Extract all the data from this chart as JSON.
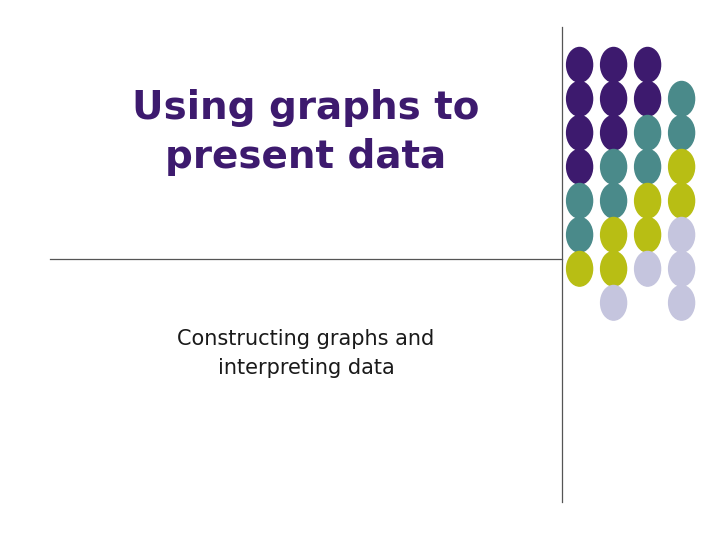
{
  "title_line1": "Using graphs to",
  "title_line2": "present data",
  "subtitle_line1": "Constructing graphs and",
  "subtitle_line2": "interpreting data",
  "title_color": "#3d1a6e",
  "subtitle_color": "#1a1a1a",
  "background_color": "#ffffff",
  "line_color": "#555555",
  "dot_colors": {
    "purple": "#3d1a6e",
    "teal": "#4a8a8a",
    "yellow": "#b8be14",
    "lavender": "#c5c5de"
  },
  "dot_grid": [
    [
      "purple",
      "purple",
      "purple",
      "none"
    ],
    [
      "purple",
      "purple",
      "purple",
      "teal"
    ],
    [
      "purple",
      "purple",
      "teal",
      "teal"
    ],
    [
      "purple",
      "teal",
      "teal",
      "yellow"
    ],
    [
      "teal",
      "teal",
      "yellow",
      "yellow"
    ],
    [
      "teal",
      "yellow",
      "yellow",
      "lavender"
    ],
    [
      "yellow",
      "yellow",
      "lavender",
      "lavender"
    ],
    [
      "none",
      "lavender",
      "none",
      "lavender"
    ]
  ]
}
